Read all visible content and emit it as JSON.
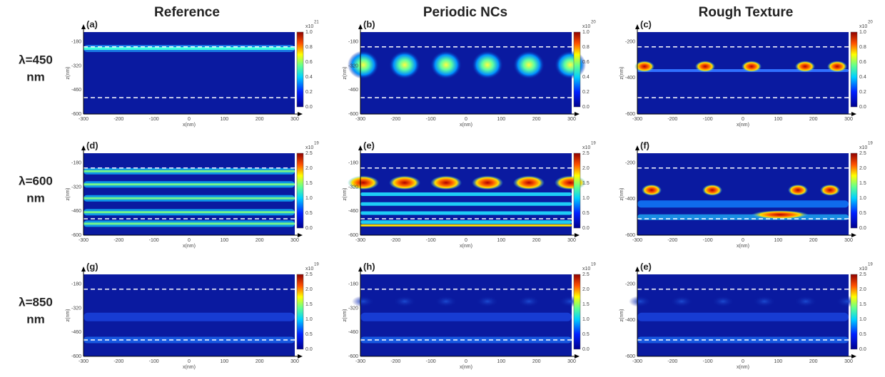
{
  "columns": [
    "Reference",
    "Periodic NCs",
    "Rough Texture"
  ],
  "rows": [
    {
      "wavelength": "λ=450",
      "unit": "nm"
    },
    {
      "wavelength": "λ=600",
      "unit": "nm"
    },
    {
      "wavelength": "λ=850",
      "unit": "nm"
    }
  ],
  "x_axis": {
    "label": "x(nm)",
    "ticks": [
      "-300",
      "-200",
      "-100",
      "0",
      "100",
      "200",
      "300"
    ]
  },
  "z_axis_label": "z(nm)",
  "colorbar_prefix": "x10",
  "panels": [
    {
      "label": "(a)",
      "zticks": [
        "-180",
        "-320",
        "-460",
        "-600"
      ],
      "cbar_ticks": [
        "1.0",
        "0.8",
        "0.6",
        "0.4",
        "0.2",
        "0.0"
      ],
      "cbar_power": "21"
    },
    {
      "label": "(b)",
      "zticks": [
        "-180",
        "-320",
        "-460",
        "-600"
      ],
      "cbar_ticks": [
        "1.0",
        "0.8",
        "0.6",
        "0.4",
        "0.2",
        "0.0"
      ],
      "cbar_power": "20"
    },
    {
      "label": "(c)",
      "zticks": [
        "-200",
        "-400",
        "-600"
      ],
      "cbar_ticks": [
        "1.0",
        "0.8",
        "0.6",
        "0.4",
        "0.2",
        "0.0"
      ],
      "cbar_power": "20"
    },
    {
      "label": "(d)",
      "zticks": [
        "-180",
        "-320",
        "-460",
        "-600"
      ],
      "cbar_ticks": [
        "2.5",
        "2.0",
        "1.5",
        "1.0",
        "0.5",
        "0.0"
      ],
      "cbar_power": "19"
    },
    {
      "label": "(e)",
      "zticks": [
        "-180",
        "-320",
        "-460",
        "-600"
      ],
      "cbar_ticks": [
        "2.5",
        "2.0",
        "1.5",
        "1.0",
        "0.5",
        "0.0"
      ],
      "cbar_power": "19"
    },
    {
      "label": "(f)",
      "zticks": [
        "-200",
        "-400",
        "-600"
      ],
      "cbar_ticks": [
        "2.5",
        "2.0",
        "1.5",
        "1.0",
        "0.5",
        "0.0"
      ],
      "cbar_power": "19"
    },
    {
      "label": "(g)",
      "zticks": [
        "-180",
        "-320",
        "-460",
        "-600"
      ],
      "cbar_ticks": [
        "2.5",
        "2.0",
        "1.5",
        "1.0",
        "0.5",
        "0.0"
      ],
      "cbar_power": "19"
    },
    {
      "label": "(h)",
      "zticks": [
        "-180",
        "-320",
        "-460",
        "-600"
      ],
      "cbar_ticks": [
        "2.5",
        "2.0",
        "1.5",
        "1.0",
        "0.5",
        "0.0"
      ],
      "cbar_power": "19"
    },
    {
      "label": "(e)",
      "zticks": [
        "-200",
        "-400",
        "-600"
      ],
      "cbar_ticks": [
        "2.5",
        "2.0",
        "1.5",
        "1.0",
        "0.5",
        "0.0"
      ],
      "cbar_power": "19"
    }
  ]
}
